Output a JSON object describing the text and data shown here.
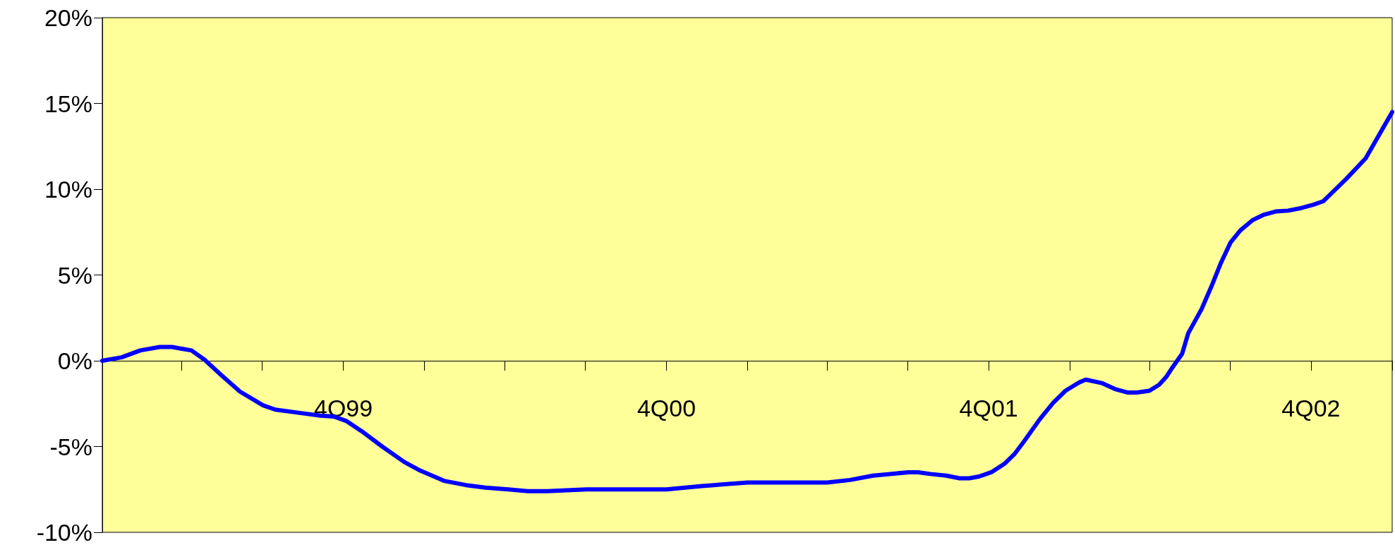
{
  "chart_data": {
    "type": "line",
    "x": [
      "1999-01-01",
      "1999-01-23",
      "1999-02-13",
      "1999-03-07",
      "1999-03-21",
      "1999-04-12",
      "1999-04-27",
      "1999-05-15",
      "1999-06-06",
      "1999-07-02",
      "1999-07-16",
      "1999-08-14",
      "1999-09-05",
      "1999-09-20",
      "1999-10-04",
      "1999-10-23",
      "1999-11-14",
      "1999-12-09",
      "1999-12-27",
      "2000-01-23",
      "2000-02-17",
      "2000-03-10",
      "2000-04-05",
      "2000-04-27",
      "2000-05-19",
      "2000-07-02",
      "2000-10-01",
      "2000-11-10",
      "2001-01-01",
      "2001-04-01",
      "2001-04-27",
      "2001-05-23",
      "2001-07-02",
      "2001-07-13",
      "2001-07-27",
      "2001-08-14",
      "2001-08-29",
      "2001-09-09",
      "2001-09-20",
      "2001-10-04",
      "2001-10-19",
      "2001-10-30",
      "2001-11-10",
      "2001-11-28",
      "2001-12-13",
      "2001-12-27",
      "2002-01-12",
      "2002-01-19",
      "2002-02-06",
      "2002-02-21",
      "2002-03-07",
      "2002-03-18",
      "2002-04-01",
      "2002-04-12",
      "2002-04-20",
      "2002-04-27",
      "2002-05-08",
      "2002-05-15",
      "2002-05-30",
      "2002-06-10",
      "2002-06-21",
      "2002-07-02",
      "2002-07-13",
      "2002-07-27",
      "2002-08-08",
      "2002-08-22",
      "2002-09-05",
      "2002-09-20",
      "2002-10-04",
      "2002-10-15",
      "2002-10-26",
      "2002-11-10",
      "2002-12-02",
      "2003-01-01"
    ],
    "series": [
      {
        "color": "#0000ff",
        "values": [
          0,
          0.2,
          0.6,
          0.8,
          0.8,
          0.6,
          0.05,
          -0.8,
          -1.8,
          -2.6,
          -2.85,
          -3.05,
          -3.2,
          -3.25,
          -3.5,
          -4.15,
          -5.0,
          -5.9,
          -6.4,
          -7.0,
          -7.25,
          -7.4,
          -7.5,
          -7.6,
          -7.6,
          -7.5,
          -7.5,
          -7.3,
          -7.1,
          -7.1,
          -6.95,
          -6.7,
          -6.5,
          -6.5,
          -6.6,
          -6.7,
          -6.85,
          -6.85,
          -6.75,
          -6.5,
          -6.0,
          -5.45,
          -4.7,
          -3.4,
          -2.45,
          -1.75,
          -1.25,
          -1.1,
          -1.3,
          -1.65,
          -1.85,
          -1.85,
          -1.75,
          -1.4,
          -0.95,
          -0.4,
          0.4,
          1.6,
          3.0,
          4.3,
          5.7,
          6.9,
          7.6,
          8.2,
          8.5,
          8.7,
          8.75,
          8.9,
          9.1,
          9.3,
          9.85,
          10.6,
          11.8,
          14.5
        ]
      }
    ],
    "xlim": [
      "1999-01-01",
      "2003-01-01"
    ],
    "xticks": [
      {
        "value": "1999-01-01",
        "label": null
      },
      {
        "value": "1999-04-01",
        "label": null
      },
      {
        "value": "1999-07-01",
        "label": null
      },
      {
        "value": "1999-10-01",
        "label": "4Q99"
      },
      {
        "value": "2000-01-01",
        "label": null
      },
      {
        "value": "2000-04-01",
        "label": null
      },
      {
        "value": "2000-07-01",
        "label": null
      },
      {
        "value": "2000-10-01",
        "label": "4Q00"
      },
      {
        "value": "2001-01-01",
        "label": null
      },
      {
        "value": "2001-04-01",
        "label": null
      },
      {
        "value": "2001-07-01",
        "label": null
      },
      {
        "value": "2001-10-01",
        "label": "4Q01"
      },
      {
        "value": "2002-01-01",
        "label": null
      },
      {
        "value": "2002-04-01",
        "label": null
      },
      {
        "value": "2002-07-01",
        "label": null
      },
      {
        "value": "2002-10-01",
        "label": "4Q02"
      },
      {
        "value": "2003-01-01",
        "label": null
      }
    ],
    "ylim": [
      -10,
      20
    ],
    "yticks": [
      {
        "value": -10,
        "label": "-10%"
      },
      {
        "value": -5,
        "label": "-5%"
      },
      {
        "value": 0,
        "label": "0%"
      },
      {
        "value": 5,
        "label": "5%"
      },
      {
        "value": 10,
        "label": "10%"
      },
      {
        "value": 15,
        "label": "15%"
      },
      {
        "value": 20,
        "label": "20%"
      }
    ],
    "grid": false,
    "marker": "none",
    "line_style": "solid"
  }
}
